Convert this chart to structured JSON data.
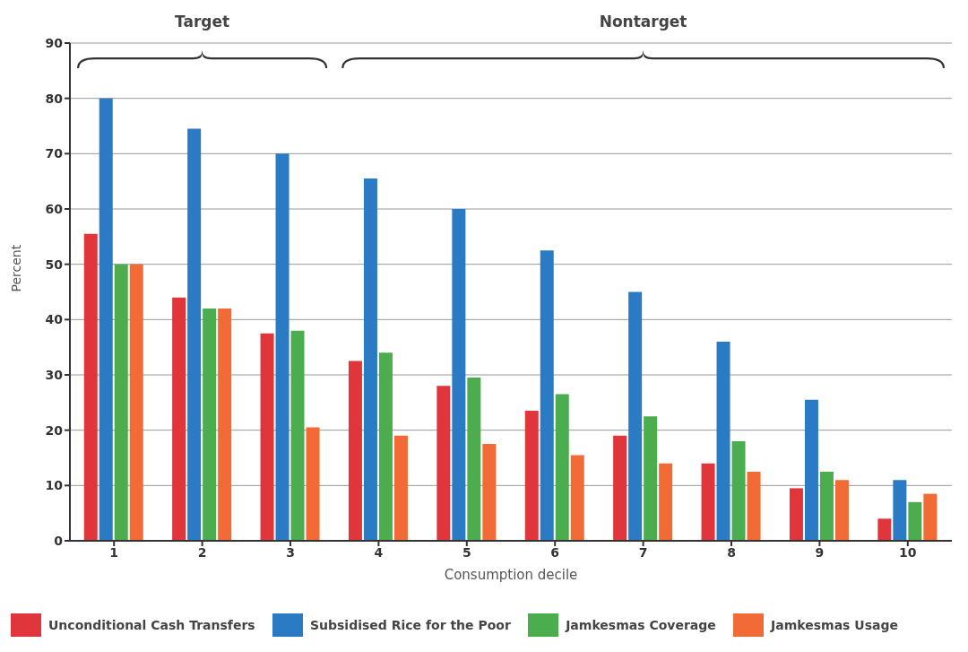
{
  "chart_data": {
    "type": "bar",
    "xlabel": "Consumption decile",
    "ylabel": "Percent",
    "categories": [
      "1",
      "2",
      "3",
      "4",
      "5",
      "6",
      "7",
      "8",
      "9",
      "10"
    ],
    "series": [
      {
        "name": "Unconditional Cash Transfers",
        "color": "#e0353b",
        "values": [
          55.5,
          44,
          37.5,
          32.5,
          28,
          23.5,
          19,
          14,
          9.5,
          4
        ]
      },
      {
        "name": "Subsidised Rice for the Poor",
        "color": "#2a7bc3",
        "values": [
          80,
          74.5,
          70,
          65.5,
          60,
          52.5,
          45,
          36,
          25.5,
          11
        ]
      },
      {
        "name": "Jamkesmas Coverage",
        "color": "#4cad4e",
        "values": [
          50,
          42,
          38,
          34,
          29.5,
          26.5,
          22.5,
          18,
          12.5,
          7
        ]
      },
      {
        "name": "Jamkesmas Usage",
        "color": "#f26a35",
        "values": [
          50,
          42,
          20.5,
          19,
          17.5,
          15.5,
          14,
          12.5,
          11,
          8.5
        ]
      }
    ],
    "ylim": [
      0,
      90
    ],
    "yticks": [
      0,
      10,
      20,
      30,
      40,
      50,
      60,
      70,
      80,
      90
    ],
    "grid": "y",
    "legend": "bottom",
    "annotations": [
      "Target",
      "Nontarget"
    ]
  }
}
